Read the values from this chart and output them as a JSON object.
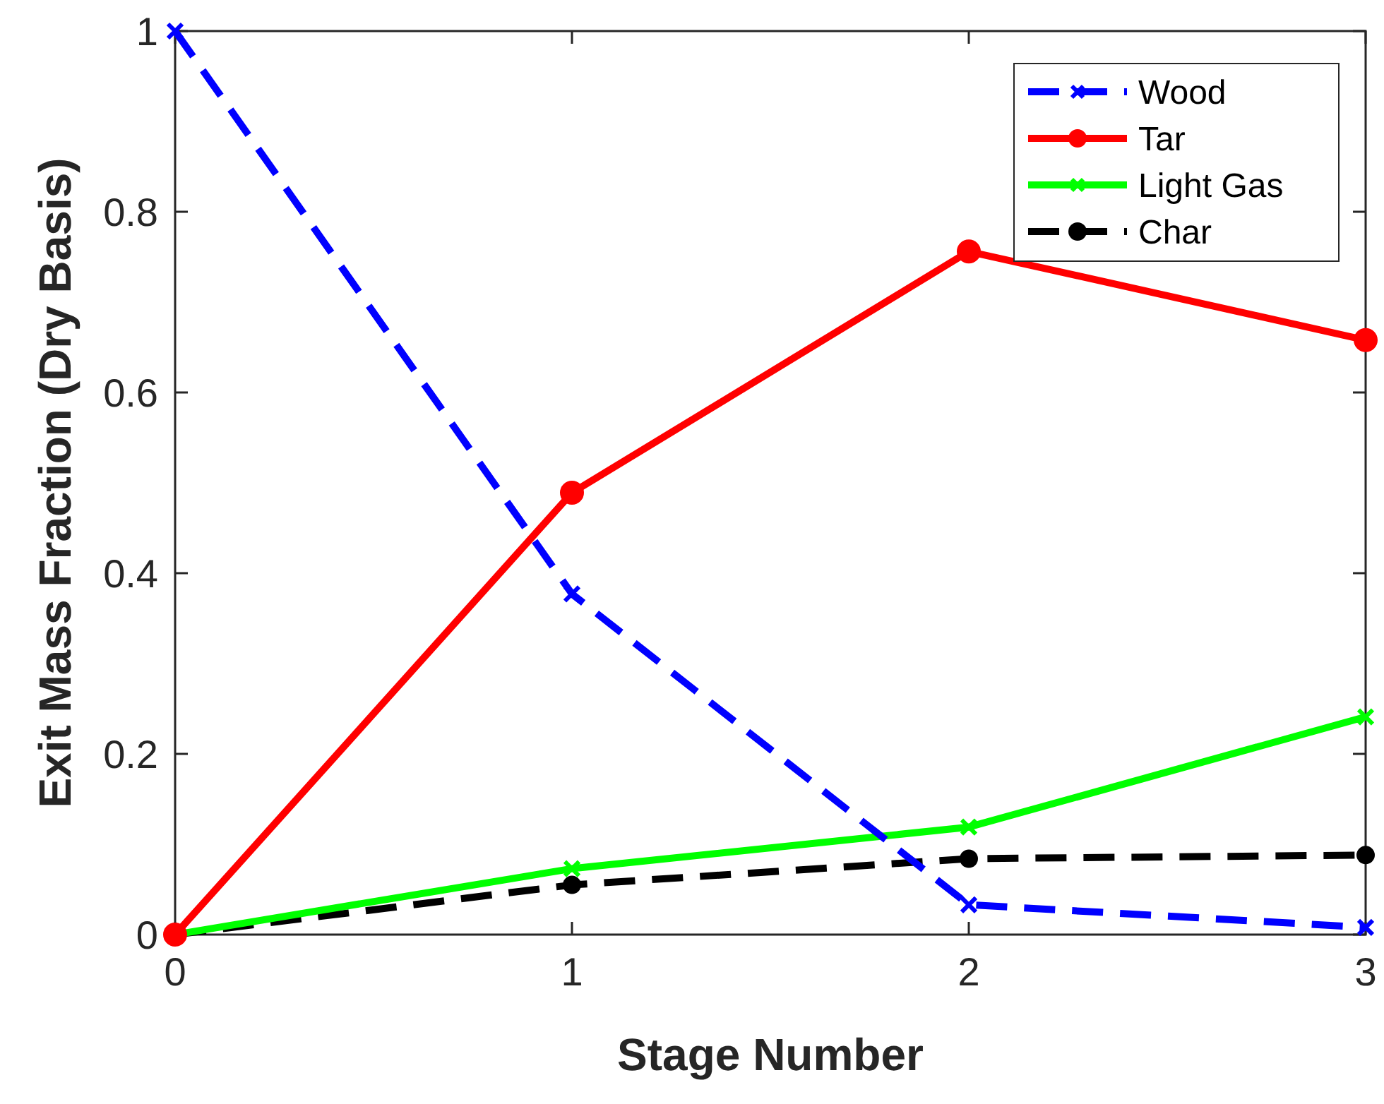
{
  "chart_data": {
    "type": "line",
    "xlabel": "Stage Number",
    "ylabel": "Exit Mass Fraction (Dry Basis)",
    "x": [
      0,
      1,
      2,
      3
    ],
    "series": [
      {
        "name": "Wood",
        "color": "#0000ff",
        "values": [
          1,
          0.377,
          0.033,
          0.008
        ],
        "marker": "cross",
        "line_style": "dashed"
      },
      {
        "name": "Tar",
        "color": "#ff0000",
        "values": [
          0,
          0.489,
          0.756,
          0.658
        ],
        "marker": "circle",
        "line_style": "solid"
      },
      {
        "name": "Light Gas",
        "color": "#00ff00",
        "values": [
          0,
          0.073,
          0.119,
          0.241
        ],
        "marker": "cross",
        "line_style": "solid"
      },
      {
        "name": "Char",
        "color": "#000000",
        "values": [
          0,
          0.055,
          0.084,
          0.088
        ],
        "marker": "circle",
        "line_style": "dashed"
      }
    ],
    "xlim": [
      0,
      3
    ],
    "xticks": [
      0,
      1,
      2,
      3
    ],
    "ylim": [
      0,
      1
    ],
    "yticks": [
      0,
      {
        "value": 0.2,
        "label": "0.2"
      },
      {
        "value": 0.4,
        "label": "0.4"
      },
      {
        "value": 0.6,
        "label": "0.6"
      },
      {
        "value": 0.8,
        "label": "0.8"
      },
      1
    ],
    "grid": false,
    "legend": "top right"
  }
}
